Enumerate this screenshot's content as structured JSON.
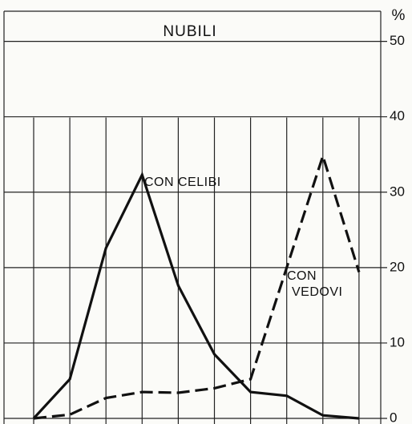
{
  "chart_data": {
    "type": "line",
    "title": "NUBILI",
    "y_label": "%",
    "categories": [
      null,
      null,
      null,
      null,
      null,
      null,
      null,
      null,
      null,
      null
    ],
    "series": [
      {
        "name": "CON CELIBI",
        "color": "#111111",
        "dash": "solid",
        "values": [
          0,
          5.2,
          22.6,
          32.3,
          17.6,
          8.5,
          3.5,
          3.0,
          0.4,
          0
        ]
      },
      {
        "name": "CON VEDOVI",
        "color": "#111111",
        "dash": "dashed",
        "values": [
          0,
          0.5,
          2.7,
          3.5,
          3.4,
          4.0,
          5.2,
          20,
          34.8,
          19.4
        ]
      }
    ],
    "ylim": [
      0,
      54
    ],
    "yticks": [
      0,
      10,
      20,
      30,
      40,
      50
    ],
    "grid": true
  }
}
